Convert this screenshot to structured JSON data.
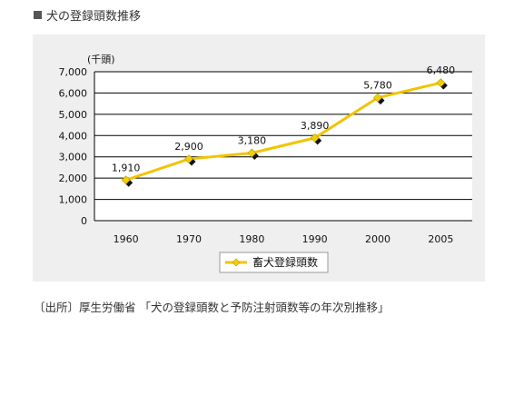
{
  "page": {
    "heading": "犬の登録頭数推移",
    "source_note": "〔出所〕厚生労働省 「犬の登録頭数と予防注射頭数等の年次別推移」"
  },
  "chart_data": {
    "type": "line",
    "title": "",
    "xlabel": "",
    "ylabel": "(千頭)",
    "ylim": [
      0,
      7000
    ],
    "yticks": [
      0,
      1000,
      2000,
      3000,
      4000,
      5000,
      6000,
      7000
    ],
    "ytick_labels": [
      "0",
      "1,000",
      "2,000",
      "3,000",
      "4,000",
      "5,000",
      "6,000",
      "7,000"
    ],
    "categories": [
      "1960",
      "1970",
      "1980",
      "1990",
      "2000",
      "2005"
    ],
    "series": [
      {
        "name": "畜犬登録頭数",
        "values": [
          1910,
          2900,
          3180,
          3890,
          5780,
          6480
        ],
        "labels": [
          "1,910",
          "2,900",
          "3,180",
          "3,890",
          "5,780",
          "6,480"
        ]
      }
    ],
    "grid": true,
    "legend": "bottom",
    "colors": {
      "line": "#f2c400",
      "marker_fill": "#f2d000",
      "marker_shadow": "#111111",
      "panel_bg": "#efefef",
      "plot_bg": "#ffffff",
      "grid": "#000000"
    }
  }
}
